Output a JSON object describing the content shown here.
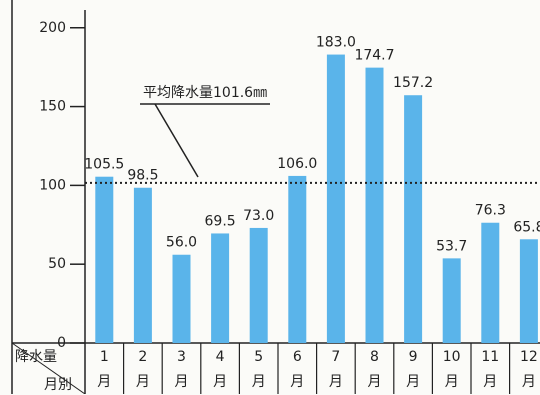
{
  "chart_data": {
    "type": "bar",
    "categories": [
      "1月",
      "2月",
      "3月",
      "4月",
      "5月",
      "6月",
      "7月",
      "8月",
      "9月",
      "10月",
      "11月",
      "12月"
    ],
    "values": [
      105.5,
      98.5,
      56.0,
      69.5,
      73.0,
      106.0,
      183.0,
      174.7,
      157.2,
      53.7,
      76.3,
      65.8
    ],
    "value_labels": [
      "105.5",
      "98.5",
      "56.0",
      "69.5",
      "73.0",
      "106.0",
      "183.0",
      "174.7",
      "157.2",
      "53.7",
      "76.3",
      "65.8"
    ],
    "color": "#5ab4ea",
    "ylim": [
      0,
      210
    ],
    "yticks": [
      0,
      50,
      100,
      150,
      200
    ],
    "average": {
      "value": 101.6,
      "label": "平均降水量101.6㎜"
    },
    "row_header_top": "降水量",
    "row_header_bottom": "月別"
  }
}
